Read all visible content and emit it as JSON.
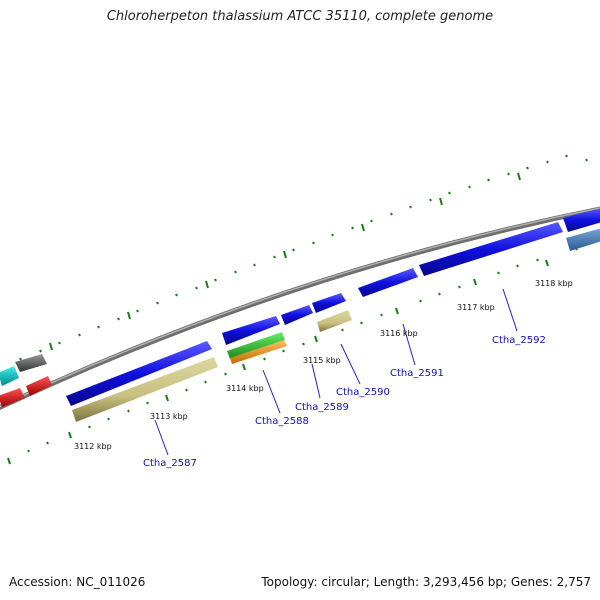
{
  "title": "Chloroherpeton thalassium ATCC 35110, complete genome",
  "footer": {
    "accession": "Accession: NC_011026",
    "summary": "Topology: circular; Length: 3,293,456 bp; Genes: 2,757"
  },
  "kbp_labels": [
    "3112 kbp",
    "3113 kbp",
    "3114 kbp",
    "3115 kbp",
    "3116 kbp",
    "3117 kbp",
    "3118 kbp"
  ],
  "gene_labels": [
    "Ctha_2587",
    "Ctha_2588",
    "Ctha_2589",
    "Ctha_2590",
    "Ctha_2591",
    "Ctha_2592"
  ],
  "colors": {
    "backbone": "#8c8c8c",
    "tick": "#1a7a1a",
    "cds_blue": "#1010e0",
    "khaki": "#c8c080",
    "green": "#33cc33",
    "orange": "#f39c12",
    "cyan": "#00cccc",
    "red": "#ee1111",
    "gray": "#666666",
    "steelblue": "#4a7ab0",
    "label": "#1111aa"
  }
}
